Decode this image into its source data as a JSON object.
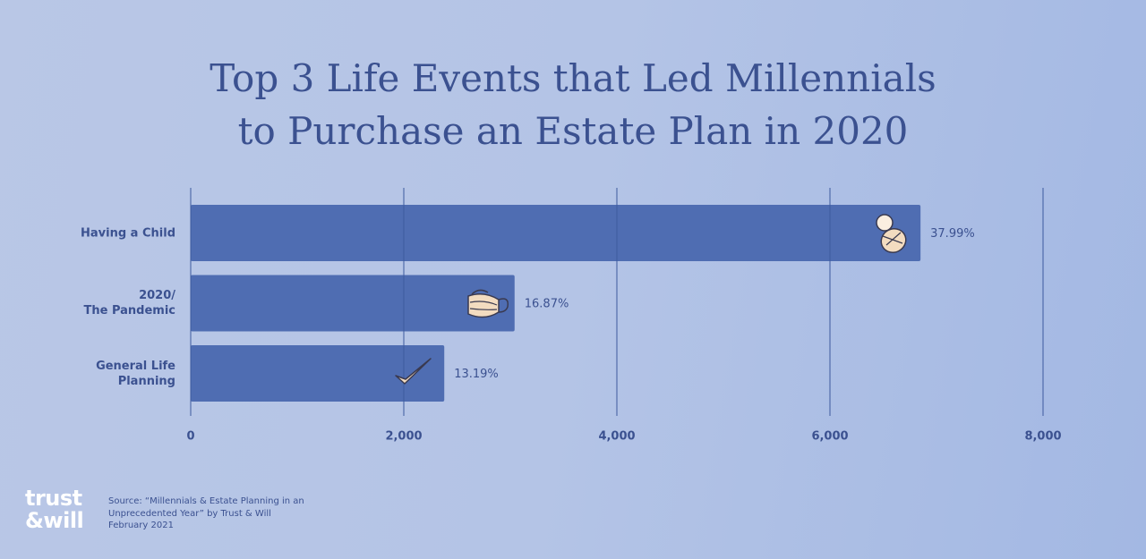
{
  "chart_data": {
    "type": "hbar",
    "title": "Top 3 Life Events that Led Millennials\nto Purchase an Estate Plan in 2020",
    "categories": [
      "Having a Child",
      "2020/\nThe Pandemic",
      "General Life\nPlanning"
    ],
    "values": [
      6850,
      3040,
      2380
    ],
    "annotations": [
      "37.99%",
      "16.87%",
      "13.19%"
    ],
    "color": "#4f6db2",
    "xlim": [
      0,
      8000
    ],
    "xticks": [
      0,
      {
        "value": 2000,
        "label": "2,000"
      },
      {
        "value": 4000,
        "label": "4,000"
      },
      {
        "value": 6000,
        "label": "6,000"
      },
      {
        "value": 8000,
        "label": "8,000"
      }
    ],
    "grid": true
  },
  "footer": {
    "logo": "trust\n&will",
    "source": "Source: “Millennials & Estate Planning in an\nUnprecedented Year” by Trust & Will\nFebruary 2021"
  }
}
